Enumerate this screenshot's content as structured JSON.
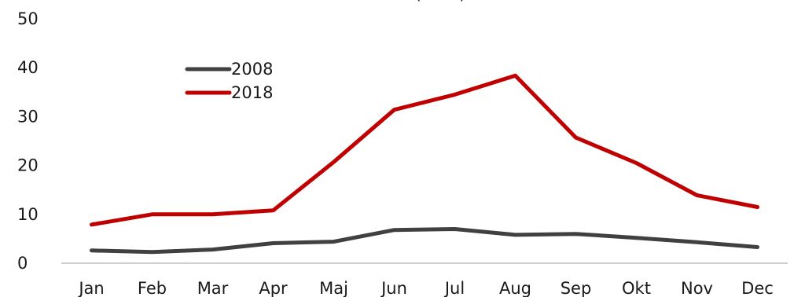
{
  "chart_data": {
    "type": "line",
    "title": "(… …)",
    "xlabel": "",
    "ylabel": "",
    "categories": [
      "Jan",
      "Feb",
      "Mar",
      "Apr",
      "Maj",
      "Jun",
      "Jul",
      "Aug",
      "Sep",
      "Okt",
      "Nov",
      "Dec"
    ],
    "ylim": [
      0,
      50
    ],
    "yticks": [
      "0",
      "10",
      "20",
      "30",
      "40",
      "50"
    ],
    "grid": false,
    "legend_position": "top-left",
    "series": [
      {
        "name": "2008",
        "color": "#404040",
        "values": [
          2.6,
          2.3,
          2.8,
          4.1,
          4.4,
          6.8,
          7.0,
          5.8,
          6.0,
          5.2,
          4.3,
          3.3
        ]
      },
      {
        "name": "2018",
        "color": "#c00000",
        "values": [
          7.9,
          10.0,
          10.0,
          10.8,
          20.7,
          31.4,
          34.5,
          38.4,
          25.7,
          20.5,
          13.9,
          11.5
        ]
      }
    ]
  }
}
